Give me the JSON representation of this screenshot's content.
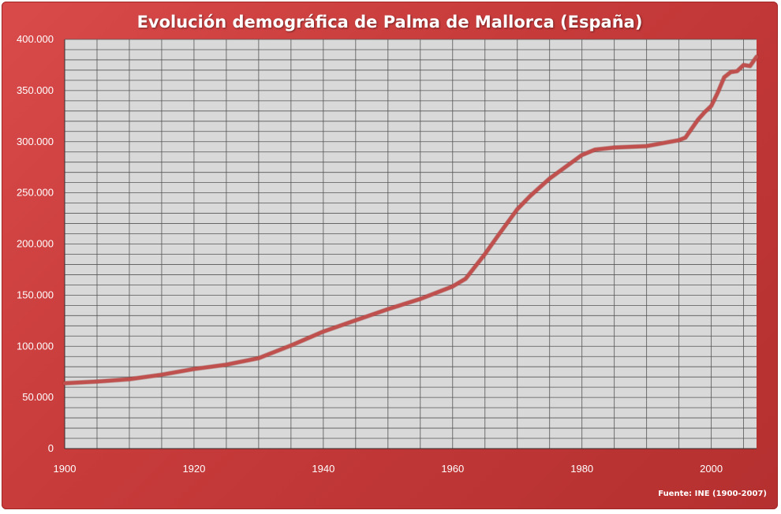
{
  "colors": {
    "background": "#c83c3c",
    "plot_area": "#d9d9d9",
    "grid": "#555555",
    "series": "#c0504d",
    "text": "#ffffff"
  },
  "chart_data": {
    "type": "line",
    "title": "Evolución demográfica de Palma de Mallorca (España)",
    "source": "Fuente: INE (1900-2007)",
    "xlim": [
      1900,
      2007
    ],
    "ylim": [
      0,
      400000
    ],
    "x_ticks": [
      1900,
      1920,
      1940,
      1960,
      1980,
      2000
    ],
    "x_tick_labels": [
      "1900",
      "1920",
      "1940",
      "1960",
      "1980",
      "2000"
    ],
    "y_ticks": [
      0,
      50000,
      100000,
      150000,
      200000,
      250000,
      300000,
      350000,
      400000
    ],
    "y_tick_labels": [
      "0",
      "50.000",
      "100.000",
      "150.000",
      "200.000",
      "250.000",
      "300.000",
      "350.000",
      "400.000"
    ],
    "grid": true,
    "series": [
      {
        "x": [
          1900,
          1905,
          1910,
          1915,
          1920,
          1925,
          1930,
          1935,
          1940,
          1945,
          1950,
          1955,
          1960,
          1962,
          1965,
          1967,
          1970,
          1972,
          1975,
          1980,
          1982,
          1985,
          1990,
          1995,
          1996,
          1997,
          1998,
          1999,
          2000,
          2001,
          2002,
          2003,
          2004,
          2005,
          2006,
          2007
        ],
        "y": [
          63900,
          65500,
          67800,
          72200,
          77800,
          82000,
          88400,
          100800,
          114400,
          125400,
          136300,
          146300,
          158500,
          166000,
          190200,
          208000,
          234000,
          247000,
          264000,
          287000,
          292200,
          294300,
          295700,
          301500,
          304000,
          313000,
          322000,
          329000,
          335000,
          348000,
          363000,
          368000,
          369000,
          375000,
          374000,
          383000
        ]
      }
    ]
  }
}
